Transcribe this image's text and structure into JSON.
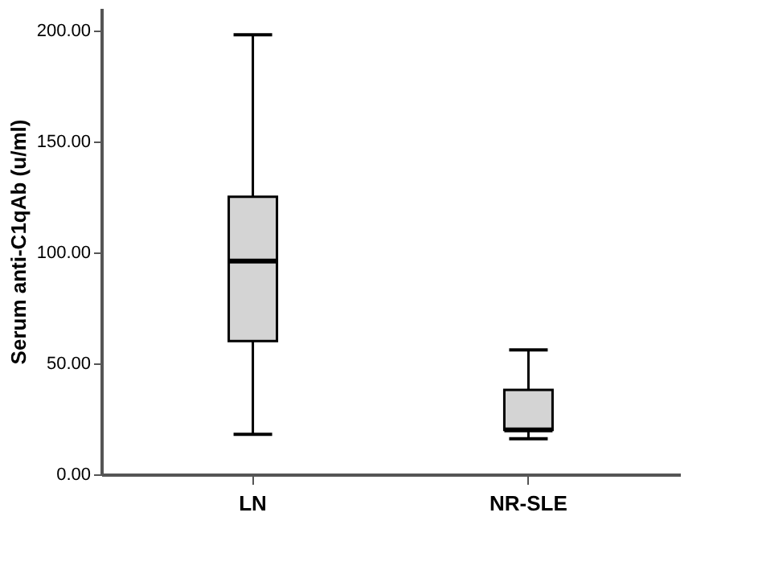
{
  "chart_data": {
    "type": "box",
    "ylabel": "Serum anti-C1qAb (u/ml)",
    "categories": [
      "LN",
      "NR-SLE"
    ],
    "color": "#d4d4d4",
    "boxes": [
      {
        "low": 18,
        "q1": 60,
        "median": 96,
        "q3": 125,
        "high": 198
      },
      {
        "low": 16,
        "q1": 20,
        "median": 20,
        "q3": 38,
        "high": 56
      }
    ],
    "ylim": [
      0,
      210
    ],
    "yticks": [
      {
        "value": 0,
        "label": "0.00"
      },
      {
        "value": 50,
        "label": "50.00"
      },
      {
        "value": 100,
        "label": "100.00"
      },
      {
        "value": 150,
        "label": "150.00"
      },
      {
        "value": 200,
        "label": "200.00"
      }
    ],
    "grid": false
  }
}
